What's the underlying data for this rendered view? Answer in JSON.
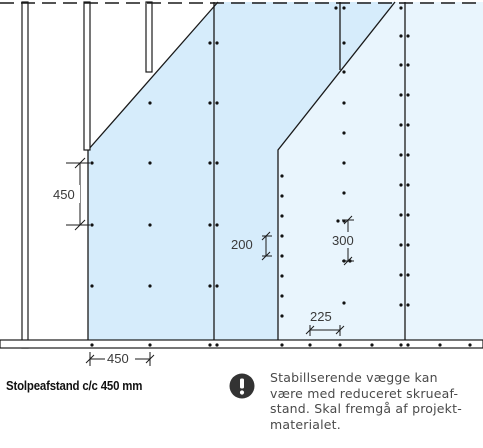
{
  "dimensions": {
    "stud_spacing": "450",
    "vertical_screw_spacing": "450",
    "reduced_edge_spacing": "200",
    "reduced_field_spacing": "300",
    "reduced_horizontal_spacing": "225"
  },
  "caption": "Stolpeafstand c/c 450 mm",
  "note": {
    "lines": [
      "Stabillserende vægge kan",
      "være med reduceret skrueaf-",
      "stand. Skal fremgå af projekt-",
      "materialet."
    ]
  },
  "colors": {
    "board_left": "#d6ecfb",
    "board_right": "#e6f4fd",
    "stud_fill": "#ffffff",
    "line": "#1a1a1a",
    "icon": "#333333"
  },
  "icons": {
    "warning": "exclamation-circle-icon"
  }
}
